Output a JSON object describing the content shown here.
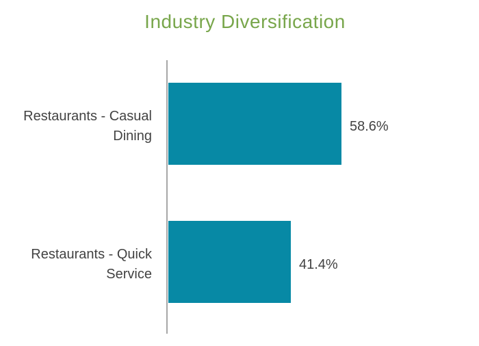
{
  "page": {
    "background": "#ffffff"
  },
  "chart_data": {
    "type": "bar",
    "orientation": "horizontal",
    "title": "Industry Diversification",
    "categories": [
      "Restaurants - Casual Dining",
      "Restaurants - Quick Service"
    ],
    "values": [
      58.6,
      41.4
    ],
    "value_labels": [
      "58.6%",
      "41.4%"
    ],
    "label_lines": [
      [
        "Restaurants - Casual",
        "Dining"
      ],
      [
        "Restaurants - Quick",
        "Service"
      ]
    ],
    "unit": "%",
    "xlim": [
      0,
      60
    ],
    "grid": false,
    "legend": "none",
    "axis": "single-vertical-baseline",
    "colors": {
      "bar": "#0789a5",
      "title": "#78a64b",
      "axis_line": "#a6a6a6",
      "text": "#424242",
      "background": "#ffffff"
    }
  }
}
